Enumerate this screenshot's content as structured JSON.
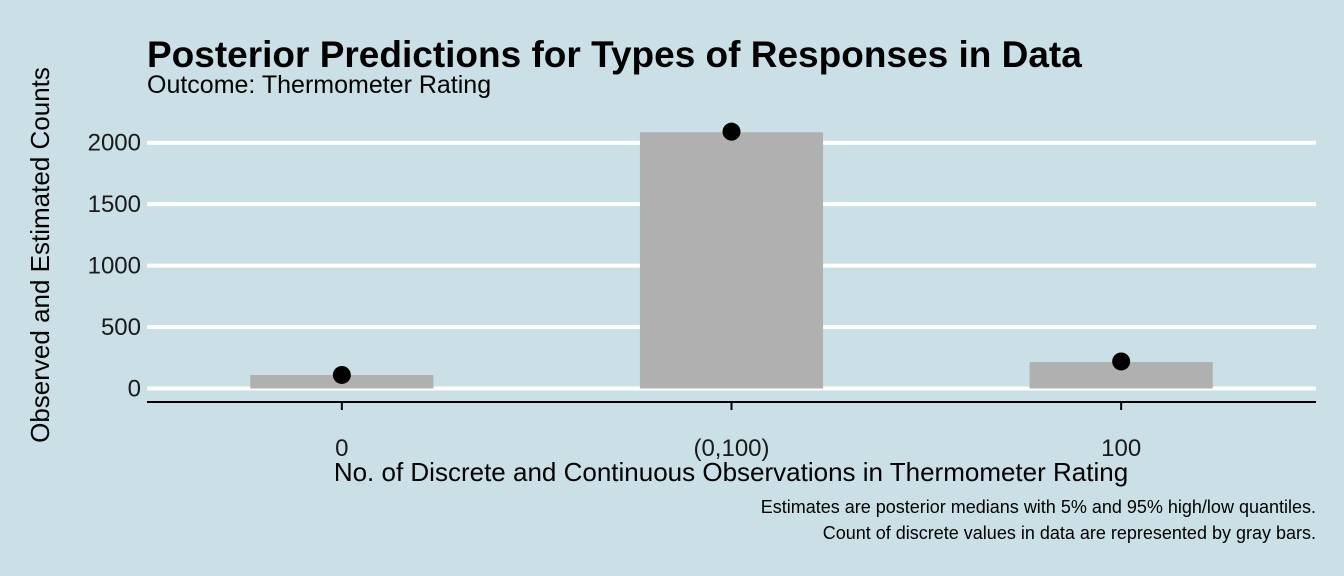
{
  "chart_data": {
    "type": "bar",
    "title": "Posterior Predictions for Types of Responses in Data",
    "subtitle": "Outcome: Thermometer Rating",
    "xlabel": "No. of Discrete and Continuous Observations in Thermometer Rating",
    "ylabel": "Observed and Estimated Counts",
    "categories": [
      "0",
      "(0,100)",
      "100"
    ],
    "series": [
      {
        "values": [
          110,
          2085,
          215
        ],
        "color": "#b0b0b0"
      },
      {
        "values": [
          110,
          2090,
          220
        ],
        "color": "#000000"
      }
    ],
    "ylim": [
      -110,
      2250
    ],
    "yticks": [
      0,
      500,
      1000,
      1500,
      2000
    ],
    "ytick_labels": [
      "0",
      "500",
      "1000",
      "1500",
      "2000"
    ],
    "grid": true,
    "caption": [
      "Estimates are posterior medians with 5% and 95% high/low quantiles.",
      "Count of discrete values in data are represented by gray bars."
    ],
    "colors": {
      "background": "#cbdfe6",
      "gridline": "#ffffff",
      "axis": "#000000"
    }
  }
}
